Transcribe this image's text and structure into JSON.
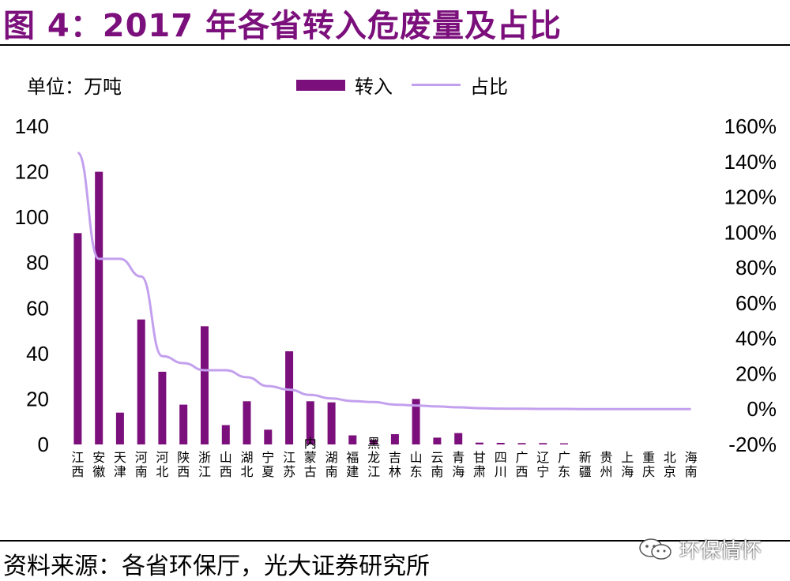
{
  "header": {
    "title": "图 4：2017 年各省转入危废量及占比"
  },
  "source": {
    "text": "资料来源：各省环保厅，光大证券研究所"
  },
  "watermark": {
    "text": "环保情怀",
    "icon": "wechat-icon"
  },
  "colors": {
    "title": "#7b0f7b",
    "bar": "#7b0f7b",
    "line": "#c3a0ee"
  },
  "chart_data": {
    "type": "bar",
    "unit_label": "单位：万吨",
    "categories": [
      "江西",
      "安徽",
      "天津",
      "河南",
      "河北",
      "陕西",
      "浙江",
      "山西",
      "湖北",
      "宁夏",
      "江苏",
      "内蒙古",
      "湖南",
      "福建",
      "黑龙江",
      "吉林",
      "山东",
      "云南",
      "青海",
      "甘肃",
      "四川",
      "广西",
      "辽宁",
      "广东",
      "新疆",
      "贵州",
      "上海",
      "重庆",
      "北京",
      "海南"
    ],
    "series": [
      {
        "name": "转入",
        "type": "bar",
        "axis": "left",
        "values": [
          93,
          120,
          14,
          55,
          32,
          17.5,
          52,
          8.5,
          19,
          6.5,
          41,
          19,
          18.5,
          4,
          2,
          4.5,
          20,
          3,
          5,
          0.8,
          0.7,
          0.6,
          0.6,
          0.5,
          0,
          0,
          0,
          0,
          0,
          0
        ]
      },
      {
        "name": "占比",
        "type": "line",
        "axis": "right",
        "values": [
          145,
          85,
          85,
          75,
          30,
          26,
          22,
          22,
          18,
          13,
          11,
          8,
          6,
          4.5,
          4,
          2.5,
          2,
          1.5,
          1,
          0.5,
          0.3,
          0.2,
          0.1,
          0.1,
          0,
          0,
          0,
          0,
          0,
          0
        ]
      }
    ],
    "y_left": {
      "ylim": [
        0,
        140
      ],
      "ticks": [
        "0",
        "20",
        "40",
        "60",
        "80",
        "100",
        "120",
        "140"
      ]
    },
    "y_right": {
      "ylim": [
        -20,
        160
      ],
      "ticks": [
        "-20%",
        "0%",
        "20%",
        "40%",
        "60%",
        "80%",
        "100%",
        "120%",
        "140%",
        "160%"
      ]
    },
    "legend": [
      "转入",
      "占比"
    ],
    "legend_position": "top-center"
  }
}
